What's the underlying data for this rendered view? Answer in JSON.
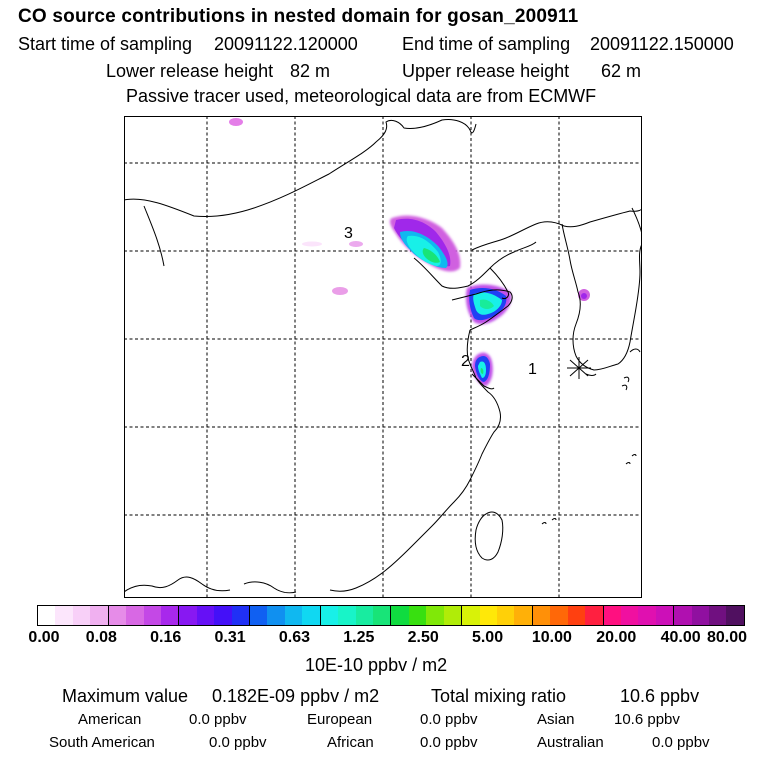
{
  "header": {
    "title": "CO  source contributions in nested domain for gosan_200911",
    "start_label": "Start time of sampling",
    "start_value": "20091122.120000",
    "end_label": "End time of sampling",
    "end_value": "20091122.150000",
    "lower_label": "Lower release height",
    "lower_value": "82 m",
    "upper_label": "Upper release height",
    "upper_value": "62 m",
    "note": "Passive tracer used, meteorological data are from ECMWF"
  },
  "map": {
    "markers": [
      {
        "label": "1"
      },
      {
        "label": "2"
      },
      {
        "label": "3"
      }
    ],
    "station_symbol": "asterisk-icon"
  },
  "colorbar": {
    "ticks": [
      "0.00",
      "0.08",
      "0.16",
      "0.31",
      "0.63",
      "1.25",
      "2.50",
      "5.00",
      "10.00",
      "20.00",
      "40.00",
      "80.00"
    ],
    "units": "10E-10 ppbv / m2",
    "colors": [
      "#ffffff",
      "#fce6fc",
      "#f8d0f8",
      "#f0b0f0",
      "#e68ce8",
      "#d868e4",
      "#c448e6",
      "#a828ec",
      "#8818f2",
      "#6610f6",
      "#4410f8",
      "#2030f6",
      "#1060f2",
      "#1090f0",
      "#10b8f0",
      "#10d8f2",
      "#18f0e8",
      "#18f4c8",
      "#18eca0",
      "#18e478",
      "#10dc40",
      "#38e010",
      "#80e808",
      "#b0ec08",
      "#d8f208",
      "#ffe808",
      "#ffd008",
      "#ffb008",
      "#ff9008",
      "#ff6808",
      "#ff4010",
      "#ff2040",
      "#ff1080",
      "#f010a0",
      "#e010b0",
      "#cc10b8",
      "#b010b0",
      "#9010a0",
      "#701080",
      "#501060"
    ]
  },
  "summary": {
    "max_label": "Maximum value",
    "max_value": "0.182E-09 ppbv / m2",
    "total_label": "Total mixing ratio",
    "total_value": "10.6 ppbv",
    "regions": [
      {
        "name": "American",
        "value": "0.0 ppbv"
      },
      {
        "name": "European",
        "value": "0.0 ppbv"
      },
      {
        "name": "Asian",
        "value": "10.6 ppbv"
      },
      {
        "name": "South American",
        "value": "0.0 ppbv"
      },
      {
        "name": "African",
        "value": "0.0 ppbv"
      },
      {
        "name": "Australian",
        "value": "0.0 ppbv"
      }
    ]
  }
}
